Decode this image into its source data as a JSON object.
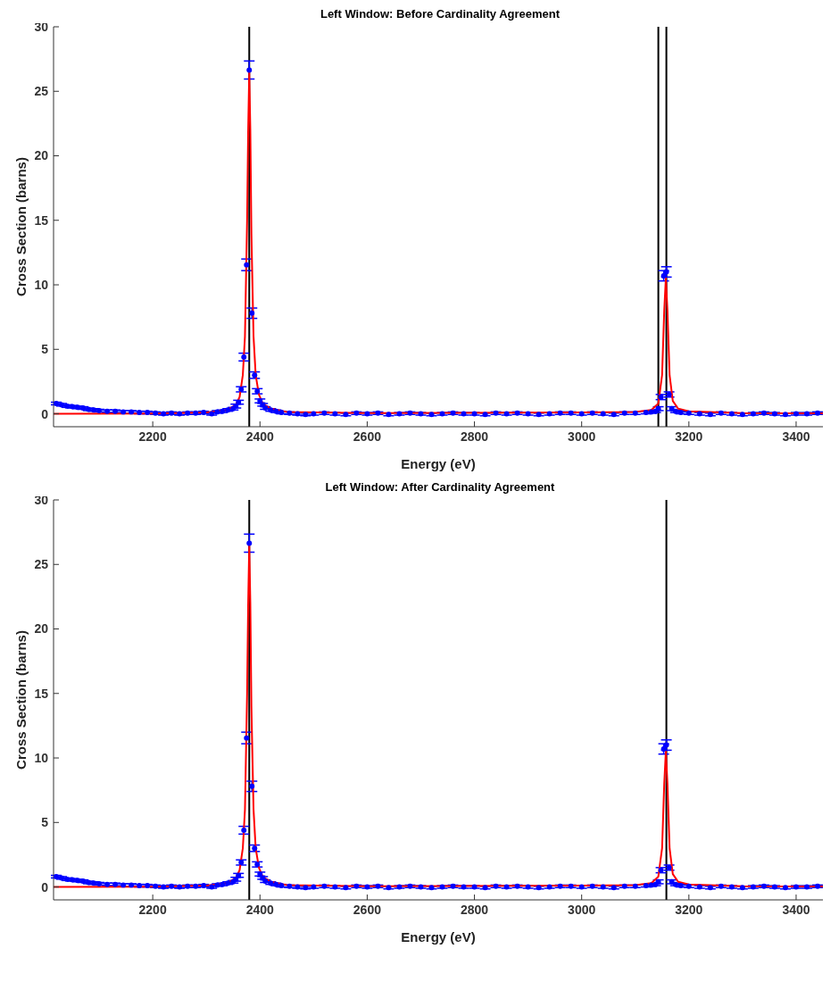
{
  "chart_data": [
    {
      "type": "scatter",
      "title": "Left Window: Before Cardinality Agreement",
      "xlabel": "Energy (eV)",
      "ylabel": "Cross Section (barns)",
      "xlim": [
        2015,
        3450
      ],
      "ylim": [
        -1,
        30
      ],
      "xticks": [
        2200,
        2400,
        2600,
        2800,
        3000,
        3200,
        3400
      ],
      "yticks": [
        0,
        5,
        10,
        15,
        20,
        25,
        30
      ],
      "grid": false,
      "legend": false,
      "series": [
        {
          "type": "scatter",
          "marker": "circle",
          "color": "#0000ff",
          "x": [
            2020,
            2030,
            2040,
            2050,
            2060,
            2070,
            2080,
            2090,
            2100,
            2115,
            2130,
            2145,
            2160,
            2175,
            2190,
            2205,
            2220,
            2235,
            2250,
            2265,
            2280,
            2295,
            2310,
            2320,
            2330,
            2340,
            2350,
            2355,
            2360,
            2365,
            2370,
            2375,
            2380,
            2385,
            2390,
            2395,
            2400,
            2405,
            2410,
            2420,
            2430,
            2440,
            2455,
            2470,
            2485,
            2500,
            2520,
            2540,
            2560,
            2580,
            2600,
            2620,
            2640,
            2660,
            2680,
            2700,
            2720,
            2740,
            2760,
            2780,
            2800,
            2820,
            2840,
            2860,
            2880,
            2900,
            2920,
            2940,
            2960,
            2980,
            3000,
            3020,
            3040,
            3060,
            3080,
            3100,
            3120,
            3130,
            3138,
            3143,
            3148,
            3153,
            3158,
            3163,
            3168,
            3175,
            3185,
            3200,
            3220,
            3240,
            3260,
            3280,
            3300,
            3320,
            3340,
            3360,
            3380,
            3400,
            3420,
            3440
          ],
          "values": [
            0.8,
            0.7,
            0.6,
            0.55,
            0.5,
            0.45,
            0.35,
            0.3,
            0.25,
            0.2,
            0.2,
            0.15,
            0.15,
            0.1,
            0.1,
            0.05,
            0.0,
            0.05,
            0.0,
            0.05,
            0.05,
            0.1,
            0.0,
            0.15,
            0.2,
            0.3,
            0.4,
            0.6,
            0.9,
            1.9,
            4.4,
            11.55,
            26.65,
            7.8,
            3.0,
            1.75,
            1.0,
            0.7,
            0.45,
            0.3,
            0.2,
            0.1,
            0.05,
            0.0,
            -0.05,
            0.0,
            0.05,
            0.0,
            -0.05,
            0.05,
            0.0,
            0.05,
            -0.05,
            0.0,
            0.05,
            0.0,
            -0.05,
            0.0,
            0.05,
            0.0,
            0.0,
            -0.05,
            0.05,
            0.0,
            0.05,
            0.0,
            -0.05,
            0.0,
            0.05,
            0.05,
            0.0,
            0.05,
            0.0,
            -0.05,
            0.05,
            0.05,
            0.1,
            0.15,
            0.2,
            0.4,
            1.3,
            10.7,
            11.0,
            1.5,
            0.4,
            0.2,
            0.1,
            0.05,
            0.0,
            -0.05,
            0.05,
            0.0,
            -0.05,
            0.0,
            0.05,
            0.0,
            -0.05,
            0.0,
            0.0,
            0.05
          ],
          "errors": [
            0.1,
            0.1,
            0.1,
            0.1,
            0.1,
            0.1,
            0.1,
            0.1,
            0.1,
            0.1,
            0.1,
            0.1,
            0.1,
            0.1,
            0.1,
            0.1,
            0.1,
            0.1,
            0.1,
            0.1,
            0.1,
            0.1,
            0.1,
            0.1,
            0.1,
            0.1,
            0.1,
            0.15,
            0.15,
            0.2,
            0.3,
            0.45,
            0.7,
            0.4,
            0.25,
            0.2,
            0.15,
            0.1,
            0.1,
            0.1,
            0.1,
            0.1,
            0.1,
            0.1,
            0.1,
            0.1,
            0.1,
            0.1,
            0.1,
            0.1,
            0.1,
            0.1,
            0.1,
            0.1,
            0.1,
            0.1,
            0.1,
            0.1,
            0.1,
            0.1,
            0.1,
            0.1,
            0.1,
            0.1,
            0.1,
            0.1,
            0.1,
            0.1,
            0.1,
            0.1,
            0.1,
            0.1,
            0.1,
            0.1,
            0.1,
            0.1,
            0.1,
            0.1,
            0.1,
            0.15,
            0.2,
            0.4,
            0.4,
            0.2,
            0.15,
            0.1,
            0.1,
            0.1,
            0.1,
            0.1,
            0.1,
            0.1,
            0.1,
            0.1,
            0.1,
            0.1,
            0.1,
            0.1,
            0.1,
            0.1
          ]
        },
        {
          "type": "line",
          "color": "#ff0000",
          "line_style": "solid",
          "x": [
            2015,
            2200,
            2300,
            2340,
            2355,
            2362,
            2368,
            2372,
            2376,
            2378,
            2380,
            2382,
            2384,
            2388,
            2392,
            2398,
            2405,
            2420,
            2450,
            2600,
            3000,
            3100,
            3130,
            3143,
            3150,
            3154,
            3157,
            3160,
            3164,
            3170,
            3180,
            3200,
            3300,
            3450
          ],
          "values": [
            0.0,
            0.02,
            0.1,
            0.3,
            0.7,
            1.3,
            3,
            6,
            15,
            22,
            26.5,
            22,
            14,
            6,
            3,
            1.5,
            0.8,
            0.4,
            0.15,
            0.05,
            0.1,
            0.15,
            0.3,
            0.8,
            3,
            8,
            10.5,
            8,
            3,
            1,
            0.4,
            0.2,
            0.05,
            0.03
          ]
        }
      ],
      "ref_lines": [
        {
          "axis": "x",
          "value": 2380,
          "color": "#000000"
        },
        {
          "axis": "x",
          "value": 3143,
          "color": "#000000"
        },
        {
          "axis": "x",
          "value": 3158,
          "color": "#000000"
        }
      ]
    },
    {
      "type": "scatter",
      "title": "Left Window: After Cardinality Agreement",
      "xlabel": "Energy (eV)",
      "ylabel": "Cross Section (barns)",
      "xlim": [
        2015,
        3450
      ],
      "ylim": [
        -1,
        30
      ],
      "xticks": [
        2200,
        2400,
        2600,
        2800,
        3000,
        3200,
        3400
      ],
      "yticks": [
        0,
        5,
        10,
        15,
        20,
        25,
        30
      ],
      "grid": false,
      "legend": false,
      "series": [
        {
          "type": "scatter",
          "marker": "circle",
          "color": "#0000ff",
          "x": [
            2020,
            2030,
            2040,
            2050,
            2060,
            2070,
            2080,
            2090,
            2100,
            2115,
            2130,
            2145,
            2160,
            2175,
            2190,
            2205,
            2220,
            2235,
            2250,
            2265,
            2280,
            2295,
            2310,
            2320,
            2330,
            2340,
            2350,
            2355,
            2360,
            2365,
            2370,
            2375,
            2380,
            2385,
            2390,
            2395,
            2400,
            2405,
            2410,
            2420,
            2430,
            2440,
            2455,
            2470,
            2485,
            2500,
            2520,
            2540,
            2560,
            2580,
            2600,
            2620,
            2640,
            2660,
            2680,
            2700,
            2720,
            2740,
            2760,
            2780,
            2800,
            2820,
            2840,
            2860,
            2880,
            2900,
            2920,
            2940,
            2960,
            2980,
            3000,
            3020,
            3040,
            3060,
            3080,
            3100,
            3120,
            3130,
            3138,
            3143,
            3148,
            3153,
            3158,
            3163,
            3168,
            3175,
            3185,
            3200,
            3220,
            3240,
            3260,
            3280,
            3300,
            3320,
            3340,
            3360,
            3380,
            3400,
            3420,
            3440
          ],
          "values": [
            0.8,
            0.7,
            0.6,
            0.55,
            0.5,
            0.45,
            0.35,
            0.3,
            0.25,
            0.2,
            0.2,
            0.15,
            0.15,
            0.1,
            0.1,
            0.05,
            0.0,
            0.05,
            0.0,
            0.05,
            0.05,
            0.1,
            0.0,
            0.15,
            0.2,
            0.3,
            0.4,
            0.6,
            0.9,
            1.9,
            4.4,
            11.55,
            26.65,
            7.8,
            3.0,
            1.75,
            1.0,
            0.7,
            0.45,
            0.3,
            0.2,
            0.1,
            0.05,
            0.0,
            -0.05,
            0.0,
            0.05,
            0.0,
            -0.05,
            0.05,
            0.0,
            0.05,
            -0.05,
            0.0,
            0.05,
            0.0,
            -0.05,
            0.0,
            0.05,
            0.0,
            0.0,
            -0.05,
            0.05,
            0.0,
            0.05,
            0.0,
            -0.05,
            0.0,
            0.05,
            0.05,
            0.0,
            0.05,
            0.0,
            -0.05,
            0.05,
            0.05,
            0.1,
            0.15,
            0.2,
            0.4,
            1.3,
            10.7,
            11.0,
            1.5,
            0.4,
            0.2,
            0.1,
            0.05,
            0.0,
            -0.05,
            0.05,
            0.0,
            -0.05,
            0.0,
            0.05,
            0.0,
            -0.05,
            0.0,
            0.0,
            0.05
          ],
          "errors": [
            0.1,
            0.1,
            0.1,
            0.1,
            0.1,
            0.1,
            0.1,
            0.1,
            0.1,
            0.1,
            0.1,
            0.1,
            0.1,
            0.1,
            0.1,
            0.1,
            0.1,
            0.1,
            0.1,
            0.1,
            0.1,
            0.1,
            0.1,
            0.1,
            0.1,
            0.1,
            0.1,
            0.15,
            0.15,
            0.2,
            0.3,
            0.45,
            0.7,
            0.4,
            0.25,
            0.2,
            0.15,
            0.1,
            0.1,
            0.1,
            0.1,
            0.1,
            0.1,
            0.1,
            0.1,
            0.1,
            0.1,
            0.1,
            0.1,
            0.1,
            0.1,
            0.1,
            0.1,
            0.1,
            0.1,
            0.1,
            0.1,
            0.1,
            0.1,
            0.1,
            0.1,
            0.1,
            0.1,
            0.1,
            0.1,
            0.1,
            0.1,
            0.1,
            0.1,
            0.1,
            0.1,
            0.1,
            0.1,
            0.1,
            0.1,
            0.1,
            0.1,
            0.1,
            0.1,
            0.15,
            0.2,
            0.4,
            0.4,
            0.2,
            0.15,
            0.1,
            0.1,
            0.1,
            0.1,
            0.1,
            0.1,
            0.1,
            0.1,
            0.1,
            0.1,
            0.1,
            0.1,
            0.1,
            0.1,
            0.1
          ]
        },
        {
          "type": "line",
          "color": "#ff0000",
          "line_style": "solid",
          "x": [
            2015,
            2200,
            2300,
            2340,
            2355,
            2362,
            2368,
            2372,
            2376,
            2378,
            2380,
            2382,
            2384,
            2388,
            2392,
            2398,
            2405,
            2420,
            2450,
            2600,
            3000,
            3100,
            3130,
            3143,
            3150,
            3154,
            3157,
            3160,
            3164,
            3170,
            3180,
            3200,
            3300,
            3450
          ],
          "values": [
            0.0,
            0.02,
            0.1,
            0.3,
            0.7,
            1.3,
            3,
            6,
            15,
            22,
            26.5,
            22,
            14,
            6,
            3,
            1.5,
            0.8,
            0.4,
            0.15,
            0.05,
            0.1,
            0.15,
            0.3,
            0.8,
            3,
            8,
            10.5,
            8,
            3,
            1,
            0.4,
            0.2,
            0.05,
            0.03
          ]
        }
      ],
      "ref_lines": [
        {
          "axis": "x",
          "value": 2380,
          "color": "#000000"
        },
        {
          "axis": "x",
          "value": 3158,
          "color": "#000000"
        }
      ]
    }
  ]
}
